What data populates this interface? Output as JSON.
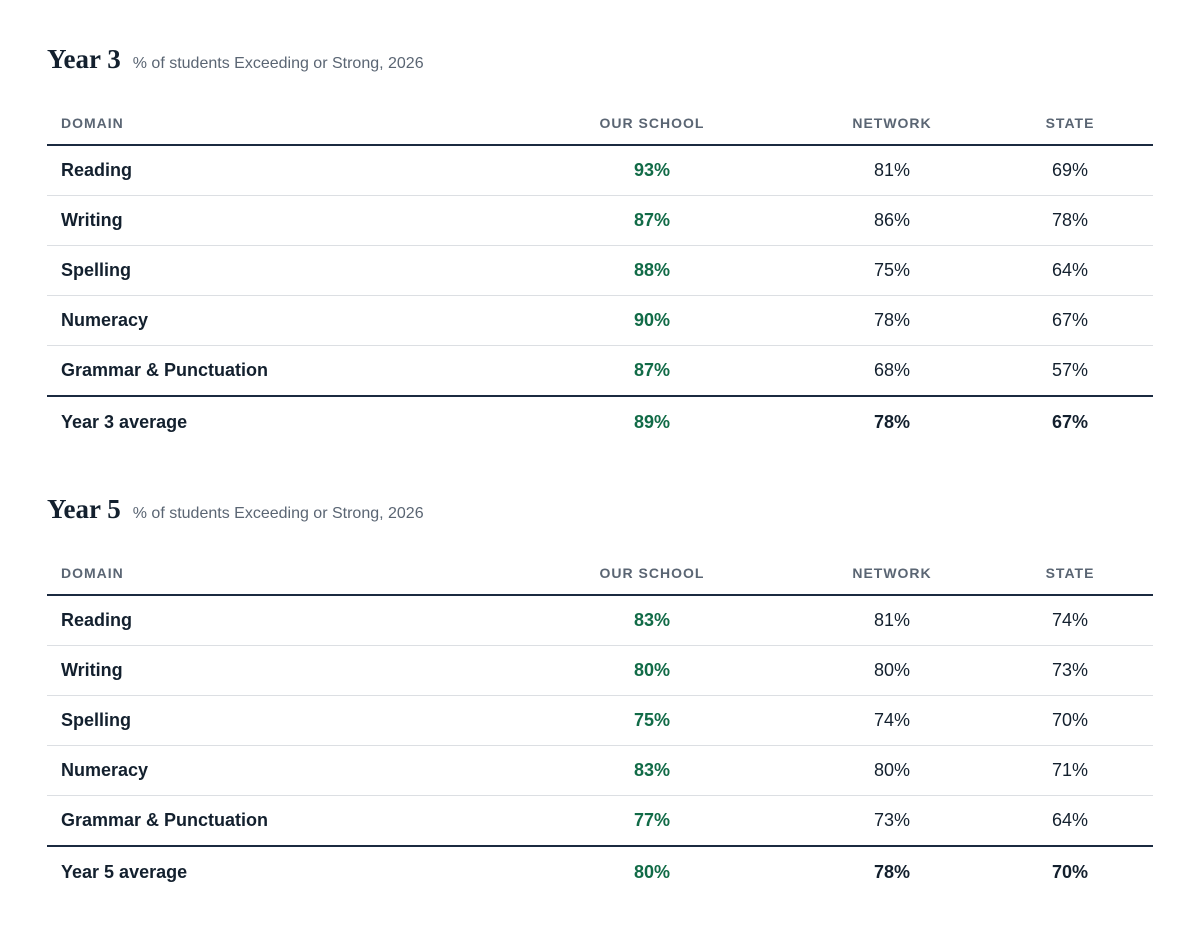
{
  "colors": {
    "heading": "#13202e",
    "muted": "#5a6573",
    "school_accent": "#116b47",
    "rule": "#1b2a40",
    "row_divider": "#dcdfe3"
  },
  "columns": [
    "DOMAIN",
    "OUR SCHOOL",
    "NETWORK",
    "STATE"
  ],
  "chart_data": [
    {
      "type": "table",
      "title": "Year 3",
      "subtitle": "% of students Exceeding or Strong, 2026",
      "columns": [
        "DOMAIN",
        "OUR SCHOOL",
        "NETWORK",
        "STATE"
      ],
      "rows": [
        {
          "domain": "Reading",
          "school": "93%",
          "network": "81%",
          "state": "69%"
        },
        {
          "domain": "Writing",
          "school": "87%",
          "network": "86%",
          "state": "78%"
        },
        {
          "domain": "Spelling",
          "school": "88%",
          "network": "75%",
          "state": "64%"
        },
        {
          "domain": "Numeracy",
          "school": "90%",
          "network": "78%",
          "state": "67%"
        },
        {
          "domain": "Grammar & Punctuation",
          "school": "87%",
          "network": "68%",
          "state": "57%"
        }
      ],
      "average": {
        "label": "Year 3 average",
        "school": "89%",
        "network": "78%",
        "state": "67%"
      }
    },
    {
      "type": "table",
      "title": "Year 5",
      "subtitle": "% of students Exceeding or Strong, 2026",
      "columns": [
        "DOMAIN",
        "OUR SCHOOL",
        "NETWORK",
        "STATE"
      ],
      "rows": [
        {
          "domain": "Reading",
          "school": "83%",
          "network": "81%",
          "state": "74%"
        },
        {
          "domain": "Writing",
          "school": "80%",
          "network": "80%",
          "state": "73%"
        },
        {
          "domain": "Spelling",
          "school": "75%",
          "network": "74%",
          "state": "70%"
        },
        {
          "domain": "Numeracy",
          "school": "83%",
          "network": "80%",
          "state": "71%"
        },
        {
          "domain": "Grammar & Punctuation",
          "school": "77%",
          "network": "73%",
          "state": "64%"
        }
      ],
      "average": {
        "label": "Year 5 average",
        "school": "80%",
        "network": "78%",
        "state": "70%"
      }
    }
  ]
}
